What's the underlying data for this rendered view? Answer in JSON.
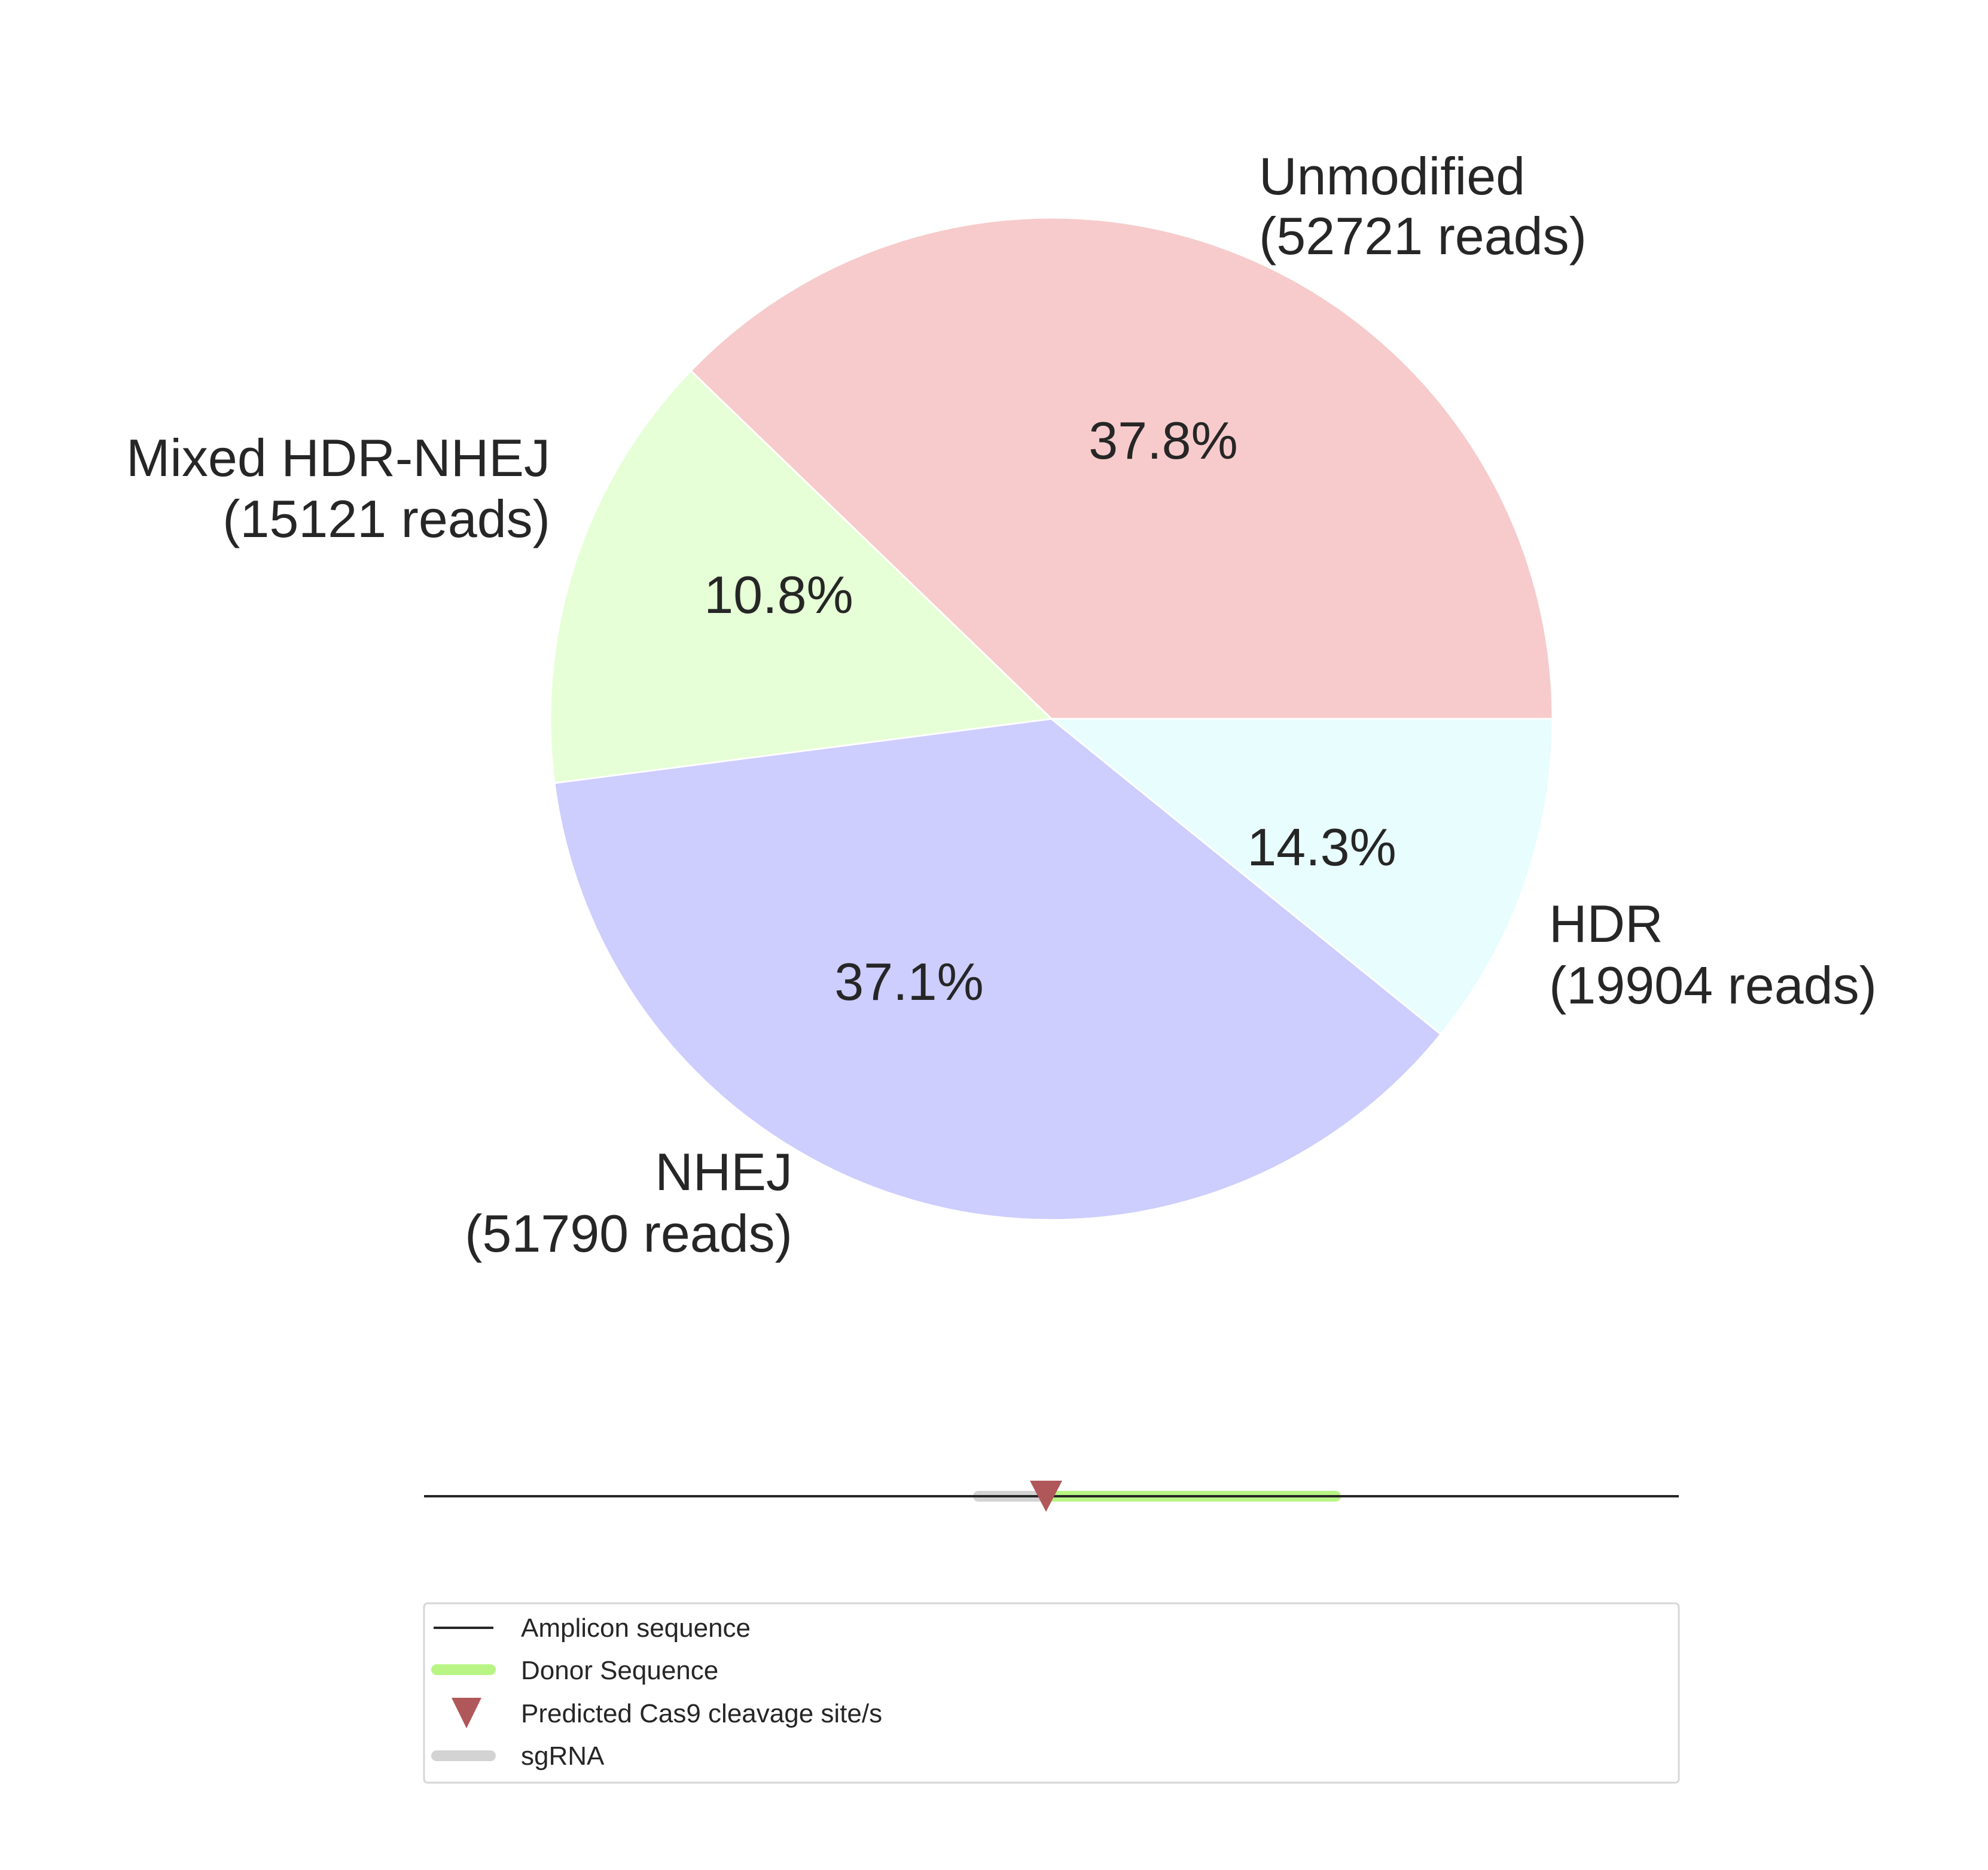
{
  "chart_data": {
    "type": "pie",
    "slices": [
      {
        "name": "Unmodified",
        "reads_label": "(52721 reads)",
        "value": 52721,
        "percent_label": "37.8%",
        "color": "#f7cbcb"
      },
      {
        "name": "HDR",
        "reads_label": "(19904 reads)",
        "value": 19904,
        "percent_label": "14.3%",
        "color": "#e6ffd6"
      },
      {
        "name": "NHEJ",
        "reads_label": "(51790 reads)",
        "value": 51790,
        "percent_label": "37.1%",
        "color": "#cdcdfe"
      },
      {
        "name": "Mixed HDR-NHEJ",
        "reads_label": "(15121 reads)",
        "value": 15121,
        "percent_label": "10.8%",
        "color": "#e8fdfd"
      }
    ]
  },
  "amplicon_diagram": {
    "amplicon_color": "#262626",
    "sgrna_color": "#d3d3d3",
    "donor_color": "#b8f585",
    "cleavage_color": "#b0575a",
    "legend": {
      "amplicon": "Amplicon sequence",
      "donor": "Donor Sequence",
      "cleavage": "Predicted Cas9 cleavage site/s",
      "sgrna": "sgRNA"
    }
  }
}
